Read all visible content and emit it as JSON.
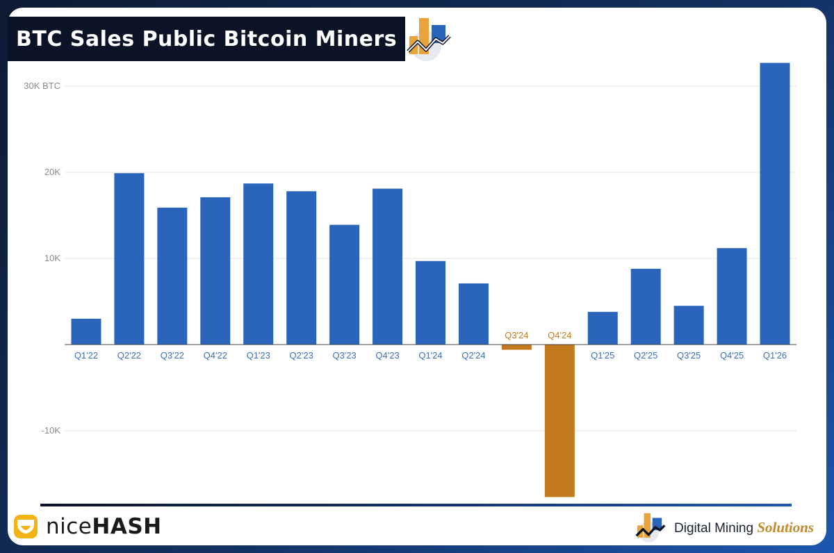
{
  "header": {
    "title": "BTC Sales Public Bitcoin Miners"
  },
  "branding": {
    "left_logo_light": "nice",
    "left_logo_bold": "HASH",
    "right_logo_name": "Digital Mining",
    "right_logo_tagline": "Solutions"
  },
  "colors": {
    "positive_bar": "#2a64bb",
    "negative_bar": "#c27a1c",
    "positive_label": "#3b6fc0",
    "negative_label": "#c27a1c",
    "frame": "#12305f",
    "accent_gold": "#e8a43a"
  },
  "chart_data": {
    "type": "bar",
    "title": "BTC Sales Public Bitcoin Miners",
    "xlabel": "",
    "ylabel": "",
    "unit": "BTC",
    "categories": [
      "Q1'22",
      "Q2'22",
      "Q3'22",
      "Q4'22",
      "Q1'23",
      "Q2'23",
      "Q3'23",
      "Q4'23",
      "Q1'24",
      "Q2'24",
      "Q3'24",
      "Q4'24",
      "Q1'25",
      "Q2'25",
      "Q3'25",
      "Q4'25",
      "Q1'26"
    ],
    "values": [
      3000,
      19900,
      15900,
      17100,
      18700,
      17800,
      13900,
      18100,
      9700,
      7100,
      -600,
      -17700,
      3800,
      8800,
      4500,
      11200,
      32700
    ],
    "ylim": [
      -18000,
      33000
    ],
    "yticks": [
      -10000,
      10000,
      20000,
      30000
    ],
    "ytick_labels": [
      "-10K",
      "10K",
      "20K",
      "30K BTC"
    ],
    "grid": true,
    "legend": "none"
  }
}
